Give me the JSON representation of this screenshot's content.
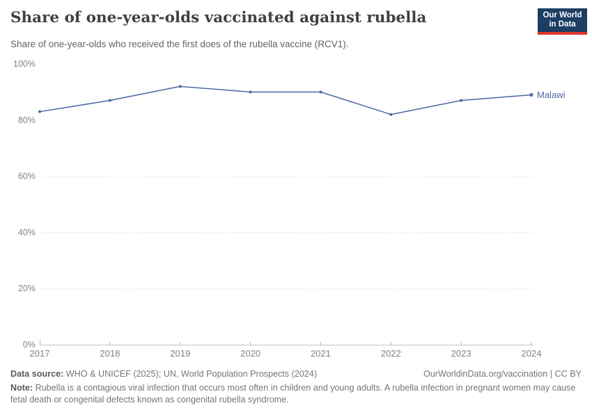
{
  "header": {
    "title": "Share of one-year-olds vaccinated against rubella",
    "subtitle": "Share of one-year-olds who received the first does of the rubella vaccine (RCV1).",
    "logo_line1": "Our World",
    "logo_line2": "in Data"
  },
  "chart_data": {
    "type": "line",
    "title": "Share of one-year-olds vaccinated against rubella",
    "x": [
      2017,
      2018,
      2019,
      2020,
      2021,
      2022,
      2023,
      2024
    ],
    "series": [
      {
        "name": "Malawi",
        "values": [
          83,
          87,
          92,
          90,
          90,
          82,
          87,
          89
        ],
        "color": "#4868A3"
      }
    ],
    "xlabel": "",
    "ylabel": "",
    "ylim": [
      0,
      100
    ],
    "yticks": [
      0,
      20,
      40,
      60,
      80,
      100
    ],
    "ytick_suffix": "%",
    "grid": "horizontal-dashed",
    "legend": "line-end-label"
  },
  "footer": {
    "source_label": "Data source:",
    "source_text": " WHO & UNICEF (2025); UN, World Population Prospects (2024)",
    "rights_text": "OurWorldinData.org/vaccination | CC BY",
    "note_label": "Note:",
    "note_text": " Rubella is a contagious viral infection that occurs most often in children and young adults. A rubella infection in pregnant women may cause fetal death or congenital defects known as congenital rubella syndrome."
  },
  "colors": {
    "accent_line": "#4868A3",
    "logo_bg": "#1d3d63",
    "logo_red": "#e0362c",
    "grid": "#dcdcdc",
    "axis": "#c2c2c2",
    "tick": "#b5b5b5",
    "axis_text": "#838383"
  }
}
